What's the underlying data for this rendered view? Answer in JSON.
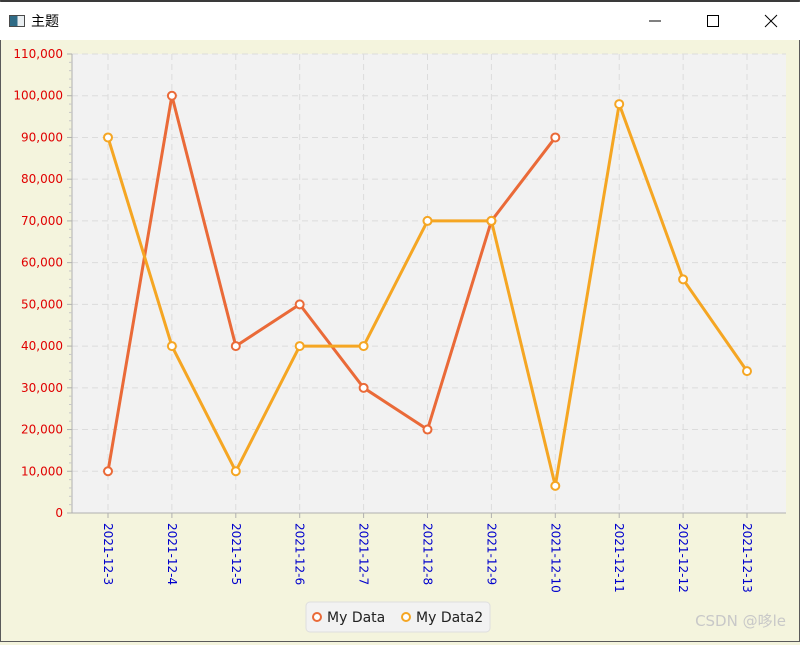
{
  "window": {
    "title": "主题"
  },
  "watermark": "CSDN @哆le",
  "colors": {
    "background": "#f4f4dd",
    "plot_background": "#f2f2f2",
    "y_tick_color": "#e00000",
    "x_tick_color": "#0000cc",
    "series1": "#ea6a38",
    "series2": "#f5a623"
  },
  "chart_data": {
    "type": "line",
    "categories": [
      "2021-12-3",
      "2021-12-4",
      "2021-12-5",
      "2021-12-6",
      "2021-12-7",
      "2021-12-8",
      "2021-12-9",
      "2021-12-10",
      "2021-12-11",
      "2021-12-12",
      "2021-12-13"
    ],
    "series": [
      {
        "name": "My Data",
        "color": "#ea6a38",
        "values": [
          10000,
          100000,
          40000,
          50000,
          30000,
          20000,
          70000,
          90000,
          null,
          null,
          null
        ]
      },
      {
        "name": "My Data2",
        "color": "#f5a623",
        "values": [
          90000,
          40000,
          10000,
          40000,
          40000,
          70000,
          70000,
          6500,
          98000,
          56000,
          34000
        ]
      }
    ],
    "ylim": [
      0,
      110000
    ],
    "y_ticks": [
      "0",
      "10,000",
      "20,000",
      "30,000",
      "40,000",
      "50,000",
      "60,000",
      "70,000",
      "80,000",
      "90,000",
      "100,000",
      "110,000"
    ],
    "grid": true,
    "legend_position": "bottom-center",
    "xlabel": "",
    "ylabel": ""
  }
}
